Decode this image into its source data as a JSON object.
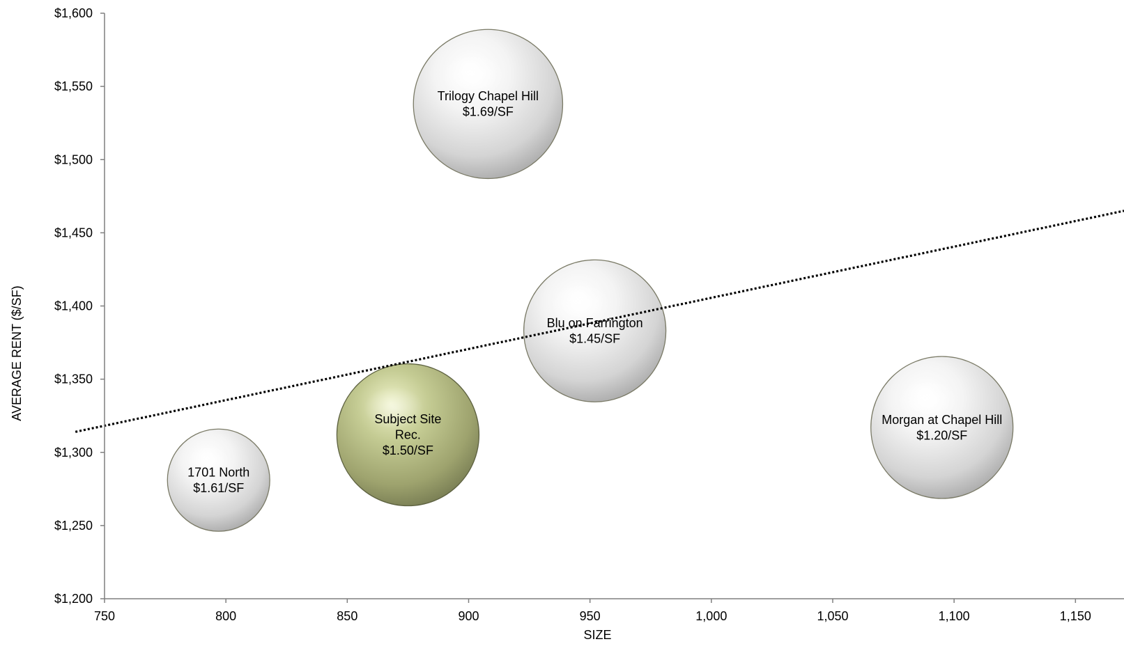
{
  "chart_data": {
    "type": "bubble",
    "xlabel": "SIZE",
    "ylabel": "AVERAGE RENT ($/SF)",
    "xlim": [
      750,
      1170
    ],
    "ylim": [
      1200,
      1600
    ],
    "x_ticks": [
      750,
      800,
      850,
      900,
      950,
      1000,
      1050,
      1100,
      1150
    ],
    "x_tick_labels": [
      "750",
      "800",
      "850",
      "900",
      "950",
      "1,000",
      "1,050",
      "1,100",
      "1,150"
    ],
    "y_ticks": [
      1200,
      1250,
      1300,
      1350,
      1400,
      1450,
      1500,
      1550,
      1600
    ],
    "y_tick_labels": [
      "$1,200",
      "$1,250",
      "$1,300",
      "$1,350",
      "$1,400",
      "$1,450",
      "$1,500",
      "$1,550",
      "$1,600"
    ],
    "trendline": {
      "style": "dotted",
      "color": "#000000",
      "x": [
        738,
        1170
      ],
      "y": [
        1314,
        1465
      ]
    },
    "bubbles": [
      {
        "label_lines": [
          "Trilogy Chapel Hill",
          "$1.69/SF"
        ],
        "x": 908,
        "y": 1538,
        "size": 1.05,
        "color": "#d9d9d9",
        "highlight": false
      },
      {
        "label_lines": [
          "Blu on Farrington",
          "$1.45/SF"
        ],
        "x": 952,
        "y": 1383,
        "size": 1.0,
        "color": "#d9d9d9",
        "highlight": false
      },
      {
        "label_lines": [
          "Subject Site",
          "Rec.",
          "$1.50/SF"
        ],
        "x": 875,
        "y": 1312,
        "size": 1.0,
        "color": "#a9b07a",
        "highlight": true
      },
      {
        "label_lines": [
          "1701 North",
          "$1.61/SF"
        ],
        "x": 797,
        "y": 1281,
        "size": 0.72,
        "color": "#d9d9d9",
        "highlight": false
      },
      {
        "label_lines": [
          "Morgan at Chapel Hill",
          "$1.20/SF"
        ],
        "x": 1095,
        "y": 1317,
        "size": 1.0,
        "color": "#d9d9d9",
        "highlight": false
      }
    ]
  }
}
